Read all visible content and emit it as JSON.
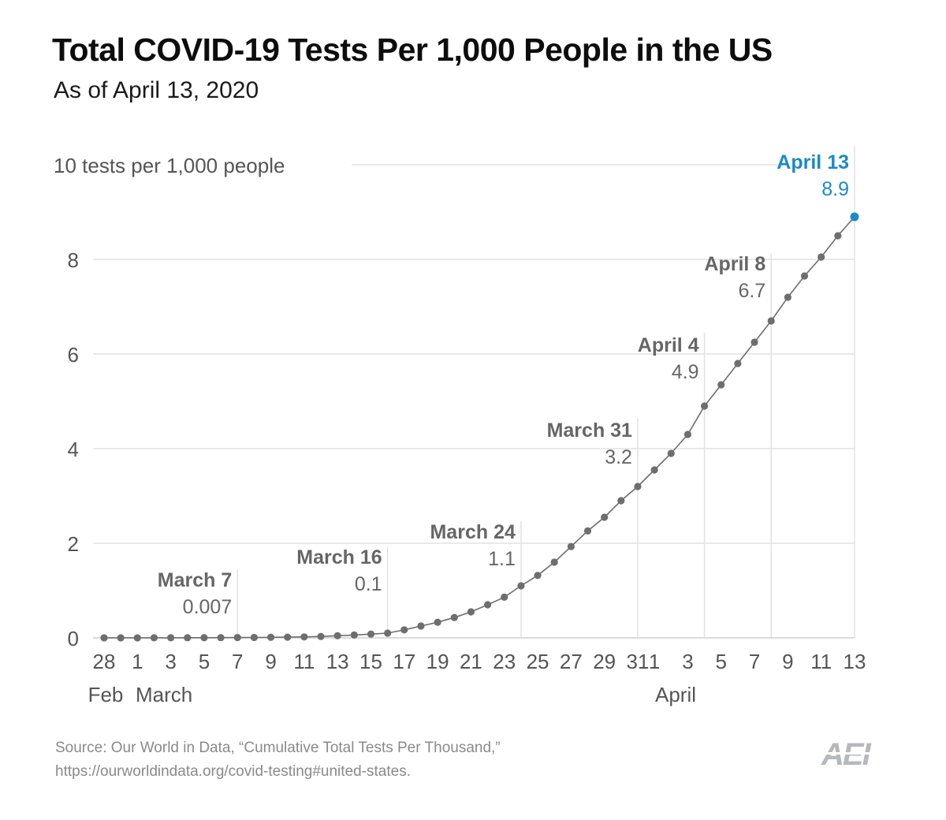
{
  "colors": {
    "line": "#6e6e6e",
    "dot": "#6e6e6e",
    "highlight": "#1a8ac8",
    "grid": "#e2e2e2",
    "logo": "#b5b8bd"
  },
  "chart_data": {
    "type": "line",
    "title": "Total COVID-19 Tests Per 1,000 People in the US",
    "subtitle": "As of April 13, 2020",
    "y_unit_label": "10 tests per 1,000 people",
    "ylim": [
      0,
      10
    ],
    "y_ticks": [
      {
        "value": 0,
        "label": "0"
      },
      {
        "value": 2,
        "label": "2"
      },
      {
        "value": 4,
        "label": "4"
      },
      {
        "value": 6,
        "label": "6"
      },
      {
        "value": 8,
        "label": "8"
      }
    ],
    "x_ticks": [
      "28",
      "1",
      "3",
      "5",
      "7",
      "9",
      "11",
      "13",
      "15",
      "17",
      "19",
      "21",
      "23",
      "25",
      "27",
      "29",
      "31",
      "1",
      "3",
      "5",
      "7",
      "9",
      "11",
      "13"
    ],
    "month_labels": [
      "Feb",
      "March",
      "April"
    ],
    "dates": [
      "Feb 28",
      "Feb 29",
      "Mar 1",
      "Mar 2",
      "Mar 3",
      "Mar 4",
      "Mar 5",
      "Mar 6",
      "Mar 7",
      "Mar 8",
      "Mar 9",
      "Mar 10",
      "Mar 11",
      "Mar 12",
      "Mar 13",
      "Mar 14",
      "Mar 15",
      "Mar 16",
      "Mar 17",
      "Mar 18",
      "Mar 19",
      "Mar 20",
      "Mar 21",
      "Mar 22",
      "Mar 23",
      "Mar 24",
      "Mar 25",
      "Mar 26",
      "Mar 27",
      "Mar 28",
      "Mar 29",
      "Mar 30",
      "Mar 31",
      "Apr 1",
      "Apr 2",
      "Apr 3",
      "Apr 4",
      "Apr 5",
      "Apr 6",
      "Apr 7",
      "Apr 8",
      "Apr 9",
      "Apr 10",
      "Apr 11",
      "Apr 12",
      "Apr 13"
    ],
    "values": [
      0.001,
      0.001,
      0.001,
      0.002,
      0.002,
      0.003,
      0.004,
      0.005,
      0.007,
      0.009,
      0.012,
      0.015,
      0.02,
      0.03,
      0.045,
      0.06,
      0.08,
      0.1,
      0.17,
      0.25,
      0.33,
      0.43,
      0.55,
      0.7,
      0.86,
      1.1,
      1.32,
      1.6,
      1.93,
      2.26,
      2.55,
      2.9,
      3.2,
      3.55,
      3.9,
      4.3,
      4.9,
      5.35,
      5.8,
      6.25,
      6.7,
      7.2,
      7.65,
      8.05,
      8.5,
      8.9
    ],
    "annotations": [
      {
        "index": 8,
        "label": "March 7",
        "value_label": "0.007",
        "highlight": false
      },
      {
        "index": 17,
        "label": "March 16",
        "value_label": "0.1",
        "highlight": false
      },
      {
        "index": 25,
        "label": "March 24",
        "value_label": "1.1",
        "highlight": false
      },
      {
        "index": 32,
        "label": "March 31",
        "value_label": "3.2",
        "highlight": false
      },
      {
        "index": 36,
        "label": "April 4",
        "value_label": "4.9",
        "highlight": false
      },
      {
        "index": 40,
        "label": "April 8",
        "value_label": "6.7",
        "highlight": false
      },
      {
        "index": 45,
        "label": "April 13",
        "value_label": "8.9",
        "highlight": true
      }
    ]
  },
  "footer": {
    "source_line1": "Source: Our World in Data, “Cumulative Total Tests Per Thousand,”",
    "source_line2": "https://ourworldindata.org/covid-testing#united-states.",
    "logo_text": "AEI"
  }
}
